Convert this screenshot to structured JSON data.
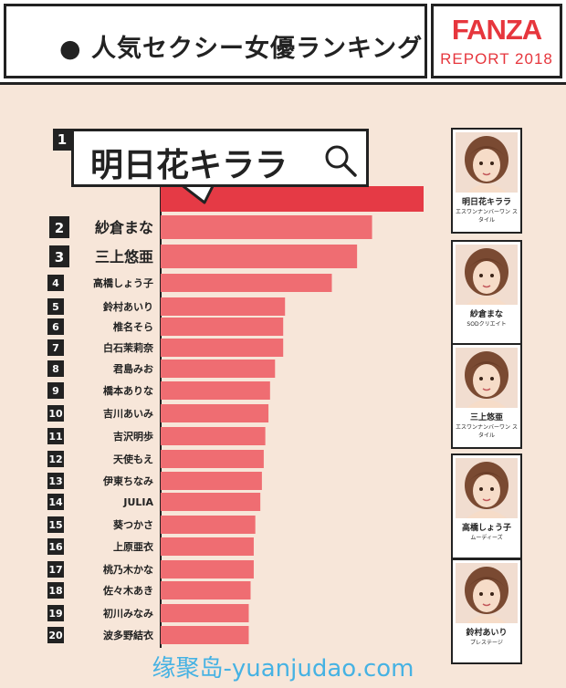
{
  "header": {
    "title": "● 人気セクシー女優ランキング",
    "brand_logo": "FANZA",
    "brand_sub": "REPORT 2018"
  },
  "rank1": {
    "number": "1",
    "name": "明日花キララ",
    "icon": "search-icon"
  },
  "colors": {
    "bar_top": "#e53a45",
    "bar": "#ef6d72",
    "background": "#f7e6d9",
    "brand": "#e6363d"
  },
  "chart_data": {
    "type": "bar",
    "orientation": "horizontal",
    "ranks": [
      "1",
      "2",
      "3",
      "4",
      "5",
      "6",
      "7",
      "8",
      "9",
      "10",
      "11",
      "12",
      "13",
      "14",
      "15",
      "16",
      "17",
      "18",
      "19",
      "20"
    ],
    "categories": [
      "明日花キララ",
      "紗倉まな",
      "三上悠亜",
      "高橋しょう子",
      "鈴村あいり",
      "椎名そら",
      "白石茉莉奈",
      "君島みお",
      "橋本ありな",
      "吉川あいみ",
      "吉沢明歩",
      "天使もえ",
      "伊東ちなみ",
      "JULIA",
      "葵つかさ",
      "上原亜衣",
      "桃乃木かな",
      "佐々木あき",
      "初川みなみ",
      "波多野結衣"
    ],
    "values": [
      100,
      80.4,
      74.7,
      65.1,
      47.3,
      46.6,
      46.6,
      43.5,
      41.6,
      41.0,
      39.8,
      39.2,
      38.5,
      37.9,
      36.0,
      35.4,
      35.4,
      34.2,
      33.5,
      33.5
    ],
    "xlim": [
      0,
      100
    ],
    "grid": false
  },
  "cards": [
    {
      "name": "明日花キララ",
      "label": "エスワンナンバーワン スタイル",
      "icon": "portrait-icon"
    },
    {
      "name": "紗倉まな",
      "label": "SODクリエイト",
      "icon": "portrait-icon"
    },
    {
      "name": "三上悠亜",
      "label": "エスワンナンバーワン スタイル",
      "icon": "portrait-icon"
    },
    {
      "name": "高橋しょう子",
      "label": "ムーディーズ",
      "icon": "portrait-icon"
    },
    {
      "name": "鈴村あいり",
      "label": "プレステージ",
      "icon": "portrait-icon"
    }
  ],
  "watermark": "缘聚岛-yuanjudao.com"
}
